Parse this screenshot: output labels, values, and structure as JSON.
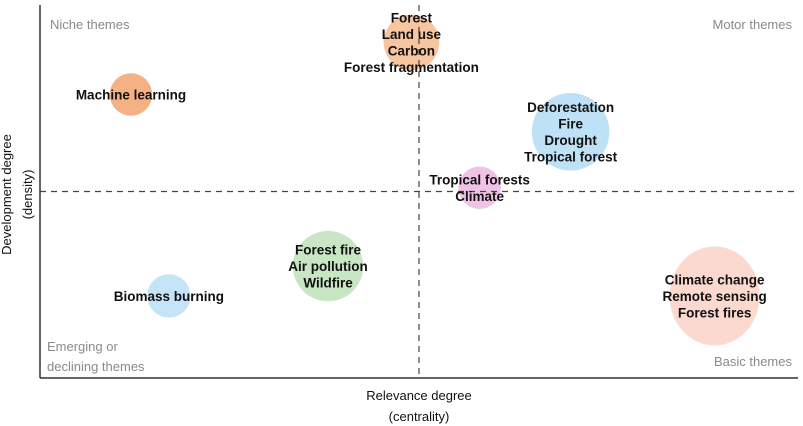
{
  "chart_data": {
    "type": "scatter",
    "title": "",
    "xlabel": [
      "Relevance degree",
      "(centrality)"
    ],
    "ylabel": [
      "Development degree",
      "(density)"
    ],
    "quadrants": {
      "top_left": "Niche themes",
      "top_right": "Motor themes",
      "bottom_left": [
        "Emerging or",
        "declining themes"
      ],
      "bottom_right": "Basic themes"
    },
    "reference_lines": {
      "x": 0.5,
      "y": 0.5,
      "style": "dashed"
    },
    "xlim": [
      0,
      1
    ],
    "ylim": [
      0,
      1
    ],
    "grid": false,
    "clusters": [
      {
        "x": 0.49,
        "y": 0.9,
        "size": 0.3,
        "color": "#f7c59f",
        "labels": [
          "Forest",
          "Land use",
          "Carbon",
          "Forest fragmentation"
        ]
      },
      {
        "x": 0.12,
        "y": 0.76,
        "size": 0.14,
        "color": "#f4b183",
        "labels": [
          "Machine learning"
        ]
      },
      {
        "x": 0.7,
        "y": 0.66,
        "size": 0.7,
        "color": "#bfe1f6",
        "labels": [
          "Deforestation",
          "Fire",
          "Drought",
          "Tropical forest"
        ]
      },
      {
        "x": 0.58,
        "y": 0.51,
        "size": 0.14,
        "color": "#efc3e6",
        "labels": [
          "Tropical forests",
          "Climate"
        ]
      },
      {
        "x": 0.38,
        "y": 0.3,
        "size": 0.55,
        "color": "#c9e6c4",
        "labels": [
          "Forest fire",
          "Air pollution",
          "Wildfire"
        ]
      },
      {
        "x": 0.17,
        "y": 0.22,
        "size": 0.15,
        "color": "#c6e4f8",
        "labels": [
          "Biomass burning"
        ]
      },
      {
        "x": 0.89,
        "y": 0.22,
        "size": 1.0,
        "color": "#fbd9cf",
        "labels": [
          "Climate change",
          "Remote sensing",
          "Forest fires"
        ]
      }
    ]
  }
}
